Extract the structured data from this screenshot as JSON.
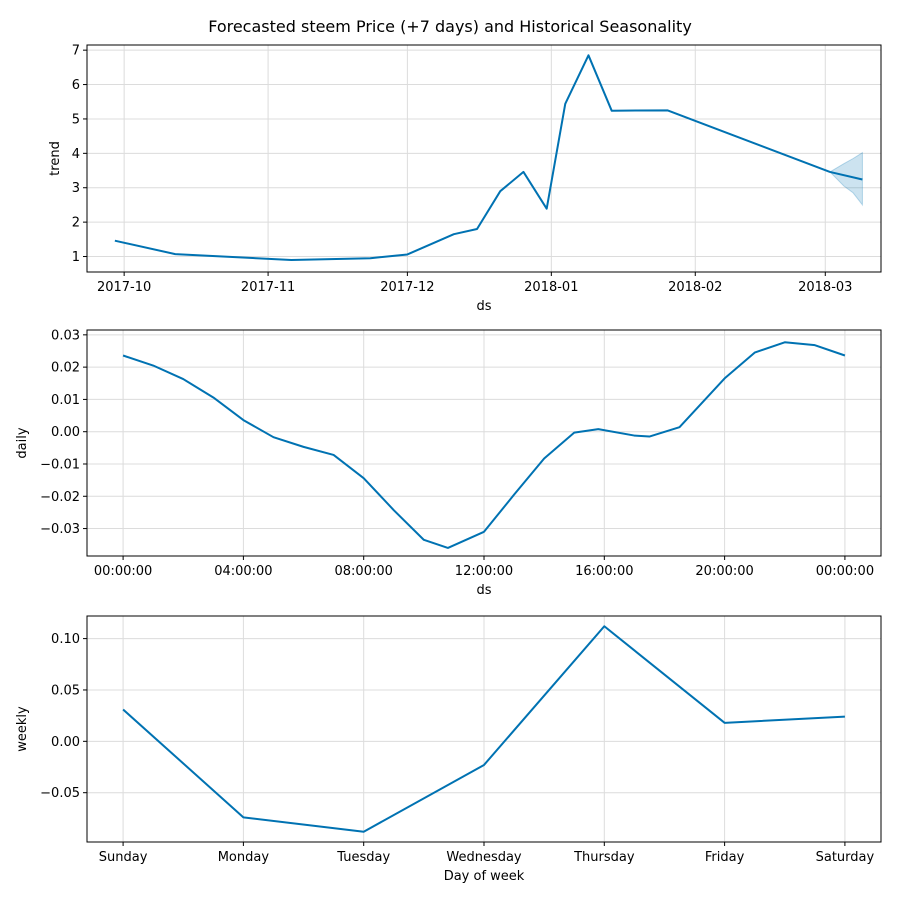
{
  "figure_title": "Forecasted steem Price (+7 days) and Historical Seasonality",
  "chart_data": [
    {
      "type": "line",
      "name": "trend",
      "xlabel": "ds",
      "ylabel": "trend",
      "x_type": "date",
      "xlim": [
        "2017-09-23",
        "2018-03-13"
      ],
      "ylim": [
        0.55,
        7.15
      ],
      "xticks": [
        {
          "value": "2017-10-01",
          "label": "2017-10"
        },
        {
          "value": "2017-11-01",
          "label": "2017-11"
        },
        {
          "value": "2017-12-01",
          "label": "2017-12"
        },
        {
          "value": "2018-01-01",
          "label": "2018-01"
        },
        {
          "value": "2018-02-01",
          "label": "2018-02"
        },
        {
          "value": "2018-03-01",
          "label": "2018-03"
        }
      ],
      "yticks": [
        {
          "value": 1,
          "label": "1"
        },
        {
          "value": 2,
          "label": "2"
        },
        {
          "value": 3,
          "label": "3"
        },
        {
          "value": 4,
          "label": "4"
        },
        {
          "value": 5,
          "label": "5"
        },
        {
          "value": 6,
          "label": "6"
        },
        {
          "value": 7,
          "label": "7"
        }
      ],
      "grid": true,
      "series": [
        {
          "color": "#0072B2",
          "points": [
            {
              "x": "2017-09-29",
              "y": 1.46
            },
            {
              "x": "2017-10-12",
              "y": 1.07
            },
            {
              "x": "2017-11-06",
              "y": 0.9
            },
            {
              "x": "2017-11-23",
              "y": 0.95
            },
            {
              "x": "2017-12-01",
              "y": 1.06
            },
            {
              "x": "2017-12-11",
              "y": 1.65
            },
            {
              "x": "2017-12-16",
              "y": 1.8
            },
            {
              "x": "2017-12-21",
              "y": 2.9
            },
            {
              "x": "2017-12-26",
              "y": 3.46
            },
            {
              "x": "2017-12-31",
              "y": 2.39
            },
            {
              "x": "2018-01-04",
              "y": 5.44
            },
            {
              "x": "2018-01-09",
              "y": 6.85
            },
            {
              "x": "2018-01-14",
              "y": 5.24
            },
            {
              "x": "2018-01-26",
              "y": 5.25
            },
            {
              "x": "2018-03-02",
              "y": 3.46
            },
            {
              "x": "2018-03-09",
              "y": 3.24
            }
          ]
        }
      ],
      "uncertainty_band": {
        "color": "#0072B2",
        "points": [
          {
            "x": "2018-03-02",
            "lower": 3.46,
            "upper": 3.46
          },
          {
            "x": "2018-03-05",
            "lower": 3.05,
            "upper": 3.7
          },
          {
            "x": "2018-03-07",
            "lower": 2.85,
            "upper": 3.85
          },
          {
            "x": "2018-03-09",
            "lower": 2.5,
            "upper": 4.02
          }
        ]
      }
    },
    {
      "type": "line",
      "name": "daily",
      "xlabel": "ds",
      "ylabel": "daily",
      "xlim": [
        -1.2,
        25.2
      ],
      "ylim": [
        -0.0385,
        0.0315
      ],
      "xticks": [
        {
          "value": 0,
          "label": "00:00:00"
        },
        {
          "value": 4,
          "label": "04:00:00"
        },
        {
          "value": 8,
          "label": "08:00:00"
        },
        {
          "value": 12,
          "label": "12:00:00"
        },
        {
          "value": 16,
          "label": "16:00:00"
        },
        {
          "value": 20,
          "label": "20:00:00"
        },
        {
          "value": 24,
          "label": "00:00:00"
        }
      ],
      "yticks": [
        {
          "value": -0.03,
          "label": "−0.03"
        },
        {
          "value": -0.02,
          "label": "−0.02"
        },
        {
          "value": -0.01,
          "label": "−0.01"
        },
        {
          "value": 0,
          "label": "0.00"
        },
        {
          "value": 0.01,
          "label": "0.01"
        },
        {
          "value": 0.02,
          "label": "0.02"
        },
        {
          "value": 0.03,
          "label": "0.03"
        }
      ],
      "grid": true,
      "series": [
        {
          "color": "#0072B2",
          "points": [
            {
              "x": 0,
              "y": 0.0236
            },
            {
              "x": 1,
              "y": 0.0205
            },
            {
              "x": 2,
              "y": 0.0163
            },
            {
              "x": 3,
              "y": 0.0106
            },
            {
              "x": 4,
              "y": 0.0036
            },
            {
              "x": 5,
              "y": -0.0017
            },
            {
              "x": 6,
              "y": -0.0047
            },
            {
              "x": 7,
              "y": -0.0072
            },
            {
              "x": 8,
              "y": -0.0144
            },
            {
              "x": 9,
              "y": -0.0243
            },
            {
              "x": 10,
              "y": -0.0335
            },
            {
              "x": 10.8,
              "y": -0.036
            },
            {
              "x": 12,
              "y": -0.031
            },
            {
              "x": 13,
              "y": -0.0195
            },
            {
              "x": 14,
              "y": -0.0083
            },
            {
              "x": 15,
              "y": -0.0003
            },
            {
              "x": 15.8,
              "y": 0.0008
            },
            {
              "x": 17,
              "y": -0.0012
            },
            {
              "x": 17.5,
              "y": -0.0015
            },
            {
              "x": 18.5,
              "y": 0.0014
            },
            {
              "x": 20,
              "y": 0.0165
            },
            {
              "x": 21,
              "y": 0.0245
            },
            {
              "x": 22,
              "y": 0.0277
            },
            {
              "x": 23,
              "y": 0.0268
            },
            {
              "x": 24,
              "y": 0.0236
            }
          ]
        }
      ]
    },
    {
      "type": "line",
      "name": "weekly",
      "xlabel": "Day of week",
      "ylabel": "weekly",
      "xlim": [
        -0.3,
        6.3
      ],
      "ylim": [
        -0.098,
        0.122
      ],
      "categories": [
        "Sunday",
        "Monday",
        "Tuesday",
        "Wednesday",
        "Thursday",
        "Friday",
        "Saturday"
      ],
      "yticks": [
        {
          "value": -0.05,
          "label": "−0.05"
        },
        {
          "value": 0,
          "label": "0.00"
        },
        {
          "value": 0.05,
          "label": "0.05"
        },
        {
          "value": 0.1,
          "label": "0.10"
        }
      ],
      "grid": true,
      "series": [
        {
          "color": "#0072B2",
          "values": [
            0.031,
            -0.074,
            -0.088,
            -0.023,
            0.112,
            0.018,
            0.024
          ]
        }
      ]
    }
  ]
}
